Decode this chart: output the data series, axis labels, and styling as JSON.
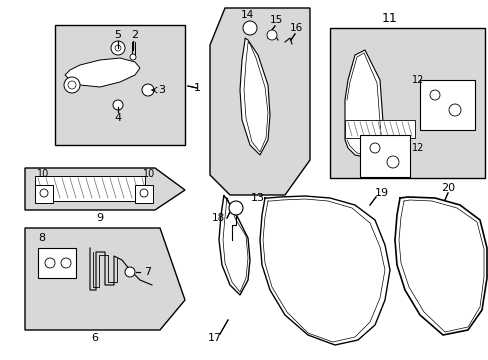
{
  "bg_color": "#ffffff",
  "line_color": "#000000",
  "gray_fill": "#d8d8d8",
  "light_gray_fill": "#e5e5e5",
  "figsize": [
    4.89,
    3.6
  ],
  "dpi": 100
}
